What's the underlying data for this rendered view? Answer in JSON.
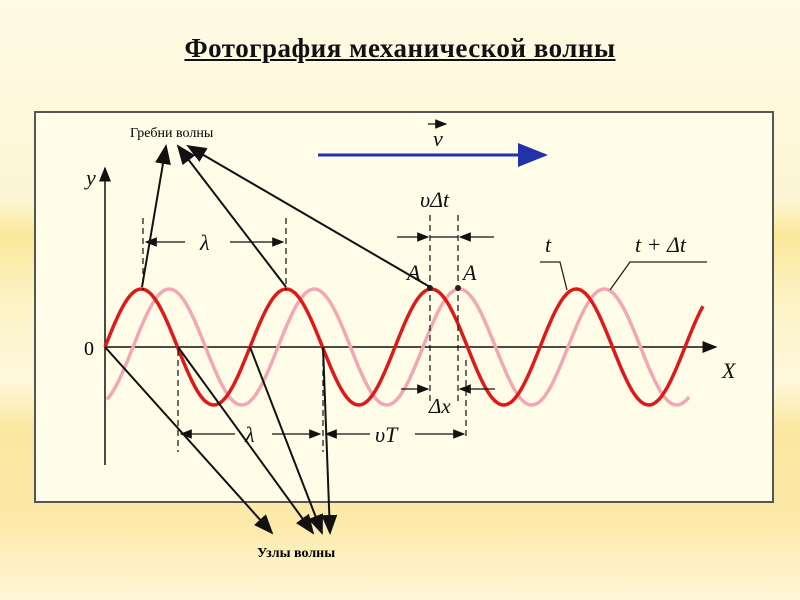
{
  "title": "Фотография механической волны",
  "diagram": {
    "crests_label": "Гребни волны",
    "nodes_label": "Узлы волны",
    "velocity_label": "v",
    "y_axis_label": "y",
    "x_axis_label": "X",
    "origin_label": "0",
    "wavelength_label": "λ",
    "vdt_label": "υΔt",
    "vT_label": "υT",
    "dx_label": "Δx",
    "point_label": "A",
    "curve_t_label": "t",
    "curve_t_dt_label": "t + Δt",
    "colors": {
      "wave_t": "#dd1a1a",
      "wave_t_dt": "#f2a7b4",
      "velocity_arrow": "#2233aa"
    }
  }
}
